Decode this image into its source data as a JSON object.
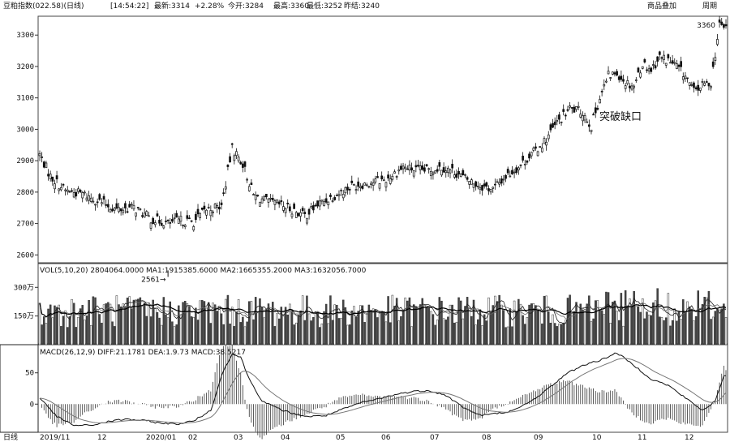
{
  "header": {
    "title": "豆粕指数(022.58)(日线)",
    "time": "[14:54:22]",
    "latest": "最新:3314",
    "change": "+2.28%",
    "open": "今开:3284",
    "high": "最高:3360",
    "low": "最低:3252",
    "volume": "昨结:3240",
    "overlay_button": "商品叠加",
    "period_button": "周期"
  },
  "chart_data": [
    {
      "type": "candlestick",
      "panel": "price",
      "yticks": [
        2600,
        2700,
        2800,
        2900,
        3000,
        3100,
        3200,
        3300
      ],
      "ylim": [
        2575,
        3360
      ],
      "x_labels": [
        "2019/11",
        "12",
        "2020/01",
        "02",
        "03",
        "04",
        "05",
        "06",
        "07",
        "08",
        "09",
        "10",
        "11",
        "12"
      ],
      "key_points": {
        "start": 2920,
        "low_label": "2561→",
        "low_value": 2561,
        "high_label": "3360",
        "high_value": 3360
      },
      "annotation": "突破缺口",
      "trend_points": [
        [
          0,
          2920
        ],
        [
          5,
          2850
        ],
        [
          12,
          2805
        ],
        [
          20,
          2795
        ],
        [
          28,
          2770
        ],
        [
          36,
          2745
        ],
        [
          44,
          2750
        ],
        [
          52,
          2715
        ],
        [
          60,
          2700
        ],
        [
          66,
          2710
        ],
        [
          72,
          2705
        ],
        [
          78,
          2745
        ],
        [
          85,
          2755
        ],
        [
          90,
          2940
        ],
        [
          95,
          2890
        ],
        [
          100,
          2790
        ],
        [
          106,
          2770
        ],
        [
          112,
          2760
        ],
        [
          118,
          2745
        ],
        [
          124,
          2725
        ],
        [
          130,
          2760
        ],
        [
          138,
          2790
        ],
        [
          146,
          2820
        ],
        [
          154,
          2830
        ],
        [
          162,
          2840
        ],
        [
          170,
          2880
        ],
        [
          176,
          2870
        ],
        [
          182,
          2870
        ],
        [
          188,
          2880
        ],
        [
          194,
          2865
        ],
        [
          200,
          2840
        ],
        [
          206,
          2820
        ],
        [
          212,
          2810
        ],
        [
          218,
          2850
        ],
        [
          224,
          2880
        ],
        [
          230,
          2920
        ],
        [
          236,
          2960
        ],
        [
          242,
          3020
        ],
        [
          248,
          3065
        ],
        [
          254,
          3055
        ],
        [
          258,
          3010
        ],
        [
          262,
          3100
        ],
        [
          266,
          3170
        ],
        [
          270,
          3180
        ],
        [
          274,
          3150
        ],
        [
          278,
          3140
        ],
        [
          282,
          3210
        ],
        [
          286,
          3190
        ],
        [
          290,
          3230
        ],
        [
          294,
          3220
        ],
        [
          298,
          3200
        ],
        [
          302,
          3170
        ],
        [
          306,
          3120
        ],
        [
          310,
          3140
        ],
        [
          314,
          3150
        ],
        [
          318,
          3330
        ]
      ]
    },
    {
      "type": "bar",
      "panel": "volume",
      "legend": [
        "VOL(5,10,20)",
        "2804064.0000",
        "MA1:1915385.6000",
        "MA2:1665355.2000",
        "MA3:1632056.7000"
      ],
      "yticks": [
        "300万",
        "150万"
      ],
      "ytick_values": [
        300,
        150
      ],
      "ylim": [
        0,
        420
      ],
      "x_labels": [
        "2019/11",
        "12",
        "2020/01",
        "02",
        "03",
        "04",
        "05",
        "06",
        "07",
        "08",
        "09",
        "10",
        "11",
        "12"
      ]
    },
    {
      "type": "line",
      "panel": "macd",
      "legend": [
        "MACD(26,12,9)",
        "DIFF:21.1781",
        "DEA:1.9.73",
        "MACD:38.5217"
      ],
      "yticks": [
        50,
        0
      ],
      "ylim": [
        -45,
        95
      ],
      "x_labels": [
        "2019/11",
        "12",
        "2020/01",
        "02",
        "03",
        "04",
        "05",
        "06",
        "07",
        "08",
        "09",
        "10",
        "11",
        "12"
      ],
      "diff_points": [
        [
          0,
          10
        ],
        [
          8,
          -20
        ],
        [
          16,
          -34
        ],
        [
          24,
          -34
        ],
        [
          32,
          -28
        ],
        [
          40,
          -24
        ],
        [
          48,
          -26
        ],
        [
          56,
          -30
        ],
        [
          64,
          -32
        ],
        [
          72,
          -27
        ],
        [
          80,
          -10
        ],
        [
          86,
          55
        ],
        [
          90,
          80
        ],
        [
          94,
          75
        ],
        [
          98,
          40
        ],
        [
          104,
          5
        ],
        [
          110,
          -5
        ],
        [
          118,
          -15
        ],
        [
          126,
          -20
        ],
        [
          134,
          -18
        ],
        [
          142,
          -8
        ],
        [
          150,
          2
        ],
        [
          158,
          8
        ],
        [
          166,
          15
        ],
        [
          174,
          20
        ],
        [
          182,
          22
        ],
        [
          190,
          14
        ],
        [
          198,
          -5
        ],
        [
          206,
          -18
        ],
        [
          214,
          -15
        ],
        [
          222,
          -10
        ],
        [
          230,
          5
        ],
        [
          238,
          25
        ],
        [
          246,
          48
        ],
        [
          254,
          62
        ],
        [
          262,
          70
        ],
        [
          270,
          82
        ],
        [
          278,
          62
        ],
        [
          286,
          40
        ],
        [
          294,
          30
        ],
        [
          302,
          10
        ],
        [
          310,
          -10
        ],
        [
          316,
          5
        ],
        [
          320,
          44
        ]
      ]
    }
  ],
  "footer": {
    "left_label": "日线"
  }
}
